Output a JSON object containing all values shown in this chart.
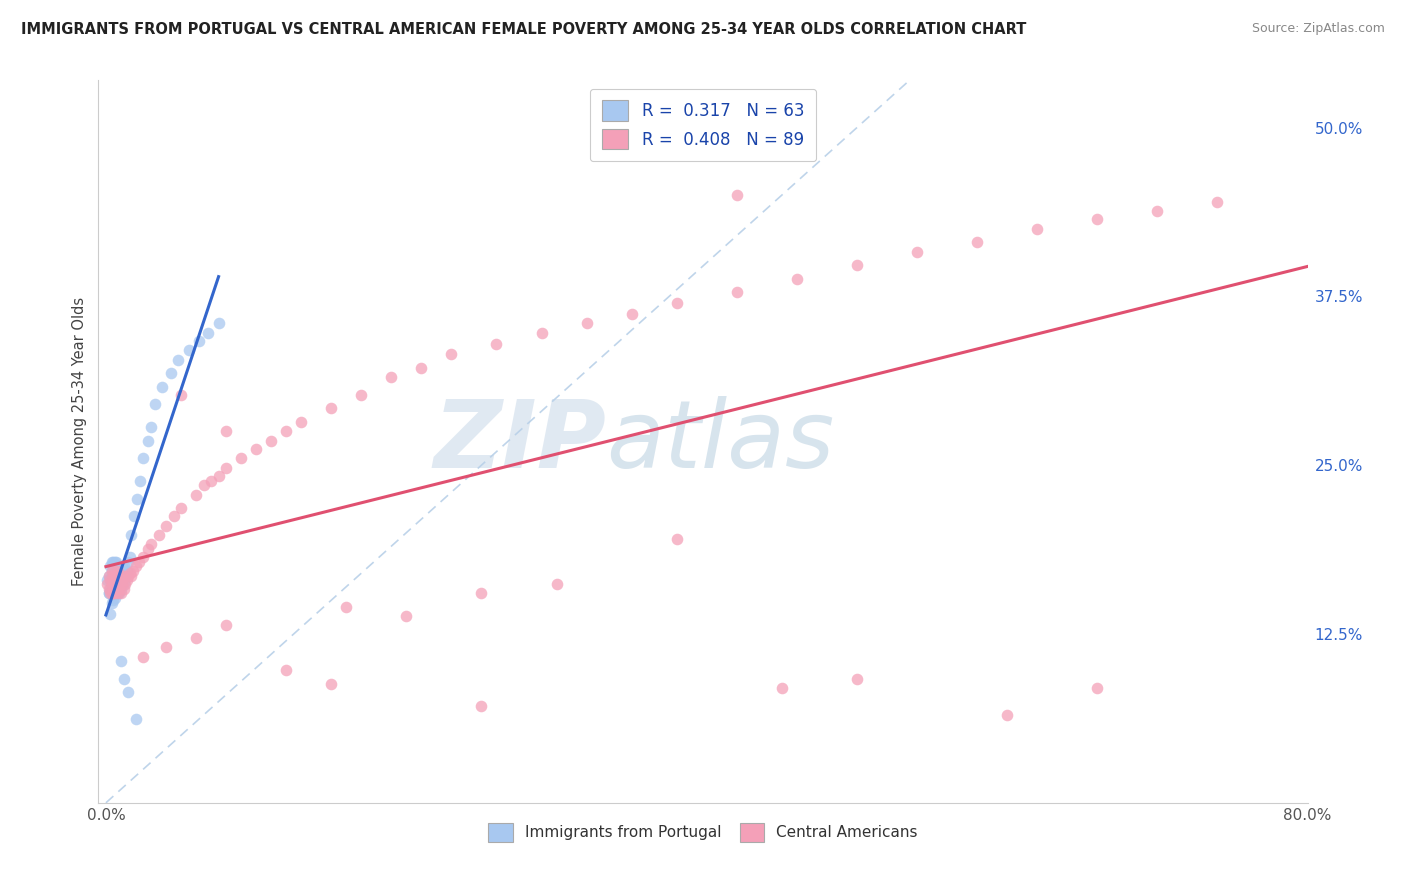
{
  "title": "IMMIGRANTS FROM PORTUGAL VS CENTRAL AMERICAN FEMALE POVERTY AMONG 25-34 YEAR OLDS CORRELATION CHART",
  "source": "Source: ZipAtlas.com",
  "ylabel": "Female Poverty Among 25-34 Year Olds",
  "xlim": [
    0.0,
    0.8
  ],
  "ylim": [
    0.0,
    0.535
  ],
  "xticks": [
    0.0,
    0.1,
    0.2,
    0.3,
    0.4,
    0.5,
    0.6,
    0.7,
    0.8
  ],
  "xticklabels": [
    "0.0%",
    "",
    "",
    "",
    "",
    "",
    "",
    "",
    "80.0%"
  ],
  "ytick_labels_right": [
    "12.5%",
    "25.0%",
    "37.5%",
    "50.0%"
  ],
  "ytick_values_right": [
    0.125,
    0.25,
    0.375,
    0.5
  ],
  "R_portugal": 0.317,
  "N_portugal": 63,
  "R_central": 0.408,
  "N_central": 89,
  "color_portugal": "#a8c8f0",
  "color_central": "#f4a0b8",
  "color_portugal_line": "#3366cc",
  "color_central_line": "#e05070",
  "color_diag_line": "#b8d0e8",
  "background_color": "#ffffff",
  "grid_color": "#d8d8d8",
  "title_color": "#222222",
  "axis_label_color": "#444444",
  "tick_color_right": "#3366cc",
  "watermark_color": "#dde8f0",
  "portugal_x": [
    0.001,
    0.002,
    0.002,
    0.002,
    0.003,
    0.003,
    0.003,
    0.003,
    0.004,
    0.004,
    0.004,
    0.004,
    0.004,
    0.005,
    0.005,
    0.005,
    0.005,
    0.005,
    0.006,
    0.006,
    0.006,
    0.006,
    0.007,
    0.007,
    0.007,
    0.007,
    0.007,
    0.008,
    0.008,
    0.008,
    0.008,
    0.009,
    0.009,
    0.009,
    0.01,
    0.01,
    0.011,
    0.011,
    0.012,
    0.012,
    0.013,
    0.014,
    0.015,
    0.016,
    0.017,
    0.019,
    0.021,
    0.023,
    0.025,
    0.028,
    0.03,
    0.033,
    0.037,
    0.043,
    0.048,
    0.055,
    0.062,
    0.068,
    0.075,
    0.01,
    0.012,
    0.015,
    0.02
  ],
  "portugal_y": [
    0.165,
    0.155,
    0.168,
    0.155,
    0.14,
    0.158,
    0.165,
    0.175,
    0.148,
    0.158,
    0.168,
    0.172,
    0.178,
    0.15,
    0.16,
    0.168,
    0.175,
    0.178,
    0.152,
    0.162,
    0.168,
    0.178,
    0.155,
    0.162,
    0.168,
    0.172,
    0.178,
    0.155,
    0.162,
    0.168,
    0.175,
    0.155,
    0.162,
    0.172,
    0.158,
    0.17,
    0.162,
    0.175,
    0.162,
    0.175,
    0.168,
    0.172,
    0.178,
    0.182,
    0.198,
    0.212,
    0.225,
    0.238,
    0.255,
    0.268,
    0.278,
    0.295,
    0.308,
    0.318,
    0.328,
    0.335,
    0.342,
    0.348,
    0.355,
    0.105,
    0.092,
    0.082,
    0.062
  ],
  "central_x": [
    0.001,
    0.002,
    0.002,
    0.003,
    0.003,
    0.004,
    0.004,
    0.004,
    0.005,
    0.005,
    0.005,
    0.006,
    0.006,
    0.006,
    0.007,
    0.007,
    0.008,
    0.008,
    0.008,
    0.009,
    0.009,
    0.01,
    0.01,
    0.011,
    0.012,
    0.012,
    0.013,
    0.014,
    0.015,
    0.016,
    0.017,
    0.018,
    0.02,
    0.022,
    0.025,
    0.028,
    0.03,
    0.035,
    0.04,
    0.045,
    0.05,
    0.06,
    0.065,
    0.07,
    0.075,
    0.08,
    0.09,
    0.1,
    0.11,
    0.12,
    0.13,
    0.15,
    0.17,
    0.19,
    0.21,
    0.23,
    0.26,
    0.29,
    0.32,
    0.35,
    0.38,
    0.42,
    0.46,
    0.5,
    0.54,
    0.58,
    0.62,
    0.66,
    0.7,
    0.74,
    0.025,
    0.04,
    0.06,
    0.08,
    0.12,
    0.16,
    0.2,
    0.25,
    0.3,
    0.38,
    0.45,
    0.5,
    0.6,
    0.66,
    0.05,
    0.08,
    0.15,
    0.25,
    0.42
  ],
  "central_y": [
    0.162,
    0.158,
    0.168,
    0.155,
    0.165,
    0.155,
    0.162,
    0.172,
    0.155,
    0.162,
    0.168,
    0.155,
    0.162,
    0.172,
    0.158,
    0.168,
    0.155,
    0.162,
    0.172,
    0.158,
    0.168,
    0.155,
    0.165,
    0.162,
    0.158,
    0.168,
    0.162,
    0.165,
    0.168,
    0.17,
    0.168,
    0.172,
    0.175,
    0.178,
    0.182,
    0.188,
    0.192,
    0.198,
    0.205,
    0.212,
    0.218,
    0.228,
    0.235,
    0.238,
    0.242,
    0.248,
    0.255,
    0.262,
    0.268,
    0.275,
    0.282,
    0.292,
    0.302,
    0.315,
    0.322,
    0.332,
    0.34,
    0.348,
    0.355,
    0.362,
    0.37,
    0.378,
    0.388,
    0.398,
    0.408,
    0.415,
    0.425,
    0.432,
    0.438,
    0.445,
    0.108,
    0.115,
    0.122,
    0.132,
    0.098,
    0.145,
    0.138,
    0.155,
    0.162,
    0.195,
    0.085,
    0.092,
    0.065,
    0.085,
    0.302,
    0.275,
    0.088,
    0.072,
    0.45
  ]
}
